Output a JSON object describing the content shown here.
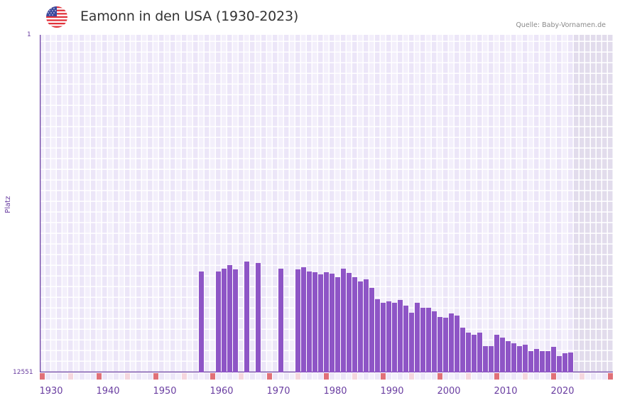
{
  "header": {
    "title": "Eamonn in den USA (1930-2023)",
    "source": "Quelle: Baby-Vornamen.de",
    "flag_icon": "us-flag-icon"
  },
  "axis": {
    "y_top_label": "1",
    "y_bottom_label": "12551",
    "y_title": "Platz",
    "x_ticks": [
      "1930",
      "1940",
      "1950",
      "1960",
      "1970",
      "1980",
      "1990",
      "2000",
      "2010",
      "2020"
    ]
  },
  "colors": {
    "bar": "#8e55c6",
    "axis": "#6a3ea1",
    "grid_bg_a": "#f3effb",
    "grid_bg_b": "#ece6f8",
    "future_shade": "#e2dcec",
    "marker_strong": "#e07078",
    "marker_light": "#f5d6de"
  },
  "chart_data": {
    "type": "bar",
    "title": "Eamonn in den USA (1930-2023)",
    "xlabel": "",
    "ylabel": "Platz",
    "ylim": [
      12551,
      1
    ],
    "y_inverted": true,
    "x_range": [
      1928,
      2028
    ],
    "grid": true,
    "shaded_future_from": 2022,
    "x": [
      1956,
      1959,
      1960,
      1961,
      1962,
      1964,
      1966,
      1970,
      1973,
      1974,
      1975,
      1976,
      1977,
      1978,
      1979,
      1980,
      1981,
      1982,
      1983,
      1984,
      1985,
      1986,
      1987,
      1988,
      1989,
      1990,
      1991,
      1992,
      1993,
      1994,
      1995,
      1996,
      1997,
      1998,
      1999,
      2000,
      2001,
      2002,
      2003,
      2004,
      2005,
      2006,
      2007,
      2008,
      2009,
      2010,
      2011,
      2012,
      2013,
      2014,
      2015,
      2016,
      2017,
      2018,
      2019,
      2020,
      2021
    ],
    "values": [
      8800,
      8800,
      8700,
      8550,
      8720,
      8420,
      8480,
      8700,
      8720,
      8640,
      8800,
      8830,
      8900,
      8830,
      8880,
      9000,
      8700,
      8860,
      9000,
      9160,
      9100,
      9420,
      9820,
      9950,
      9900,
      9970,
      9850,
      10060,
      10320,
      9970,
      10140,
      10140,
      10270,
      10480,
      10510,
      10350,
      10430,
      10880,
      11080,
      11160,
      11080,
      11580,
      11580,
      11160,
      11260,
      11390,
      11470,
      11580,
      11530,
      11760,
      11690,
      11760,
      11760,
      11600,
      11950,
      11850,
      11820
    ]
  }
}
